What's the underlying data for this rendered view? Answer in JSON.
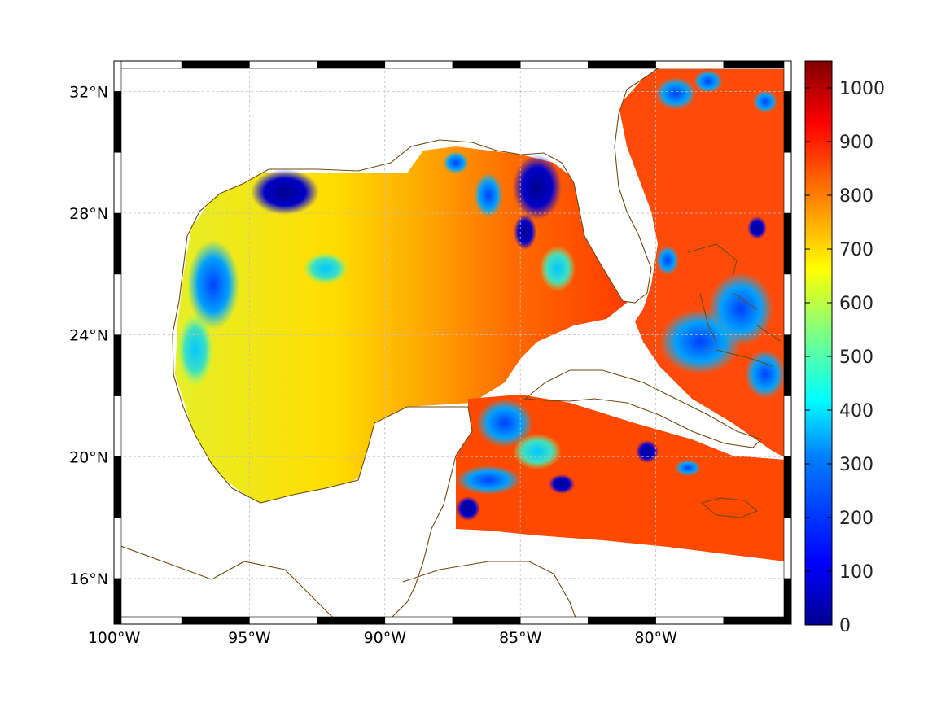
{
  "map": {
    "projection": "equidistant-cylindrical",
    "lon_range": [
      -100,
      -75
    ],
    "lat_range": [
      14.5,
      33
    ],
    "lon_ticks": [
      {
        "value": -100,
        "label": "100°W"
      },
      {
        "value": -95,
        "label": "95°W"
      },
      {
        "value": -90,
        "label": "90°W"
      },
      {
        "value": -85,
        "label": "85°W"
      },
      {
        "value": -80,
        "label": "80°W"
      }
    ],
    "lat_ticks": [
      {
        "value": 32,
        "label": "32°N"
      },
      {
        "value": 28,
        "label": "28°N"
      },
      {
        "value": 24,
        "label": "24°N"
      },
      {
        "value": 20,
        "label": "20°N"
      },
      {
        "value": 16,
        "label": "16°N"
      }
    ],
    "grid": true,
    "coastline_color": "#6b4a12",
    "field_colormap": "jet",
    "field_mask_color": "#ffffff",
    "frame": "alternating black/white graticule border"
  },
  "colorbar": {
    "min": 0,
    "max": 1050,
    "ticks": [
      {
        "value": 1000,
        "label": "1000"
      },
      {
        "value": 900,
        "label": "900"
      },
      {
        "value": 800,
        "label": "800"
      },
      {
        "value": 700,
        "label": "700"
      },
      {
        "value": 600,
        "label": "600"
      },
      {
        "value": 500,
        "label": "500"
      },
      {
        "value": 400,
        "label": "400"
      },
      {
        "value": 300,
        "label": "300"
      },
      {
        "value": 200,
        "label": "200"
      },
      {
        "value": 100,
        "label": "100"
      },
      {
        "value": 0,
        "label": "0"
      }
    ],
    "colors": [
      "#00008f",
      "#0000ff",
      "#0080ff",
      "#00ffff",
      "#80ff80",
      "#ffff00",
      "#ff8000",
      "#ff0000",
      "#800000"
    ]
  }
}
